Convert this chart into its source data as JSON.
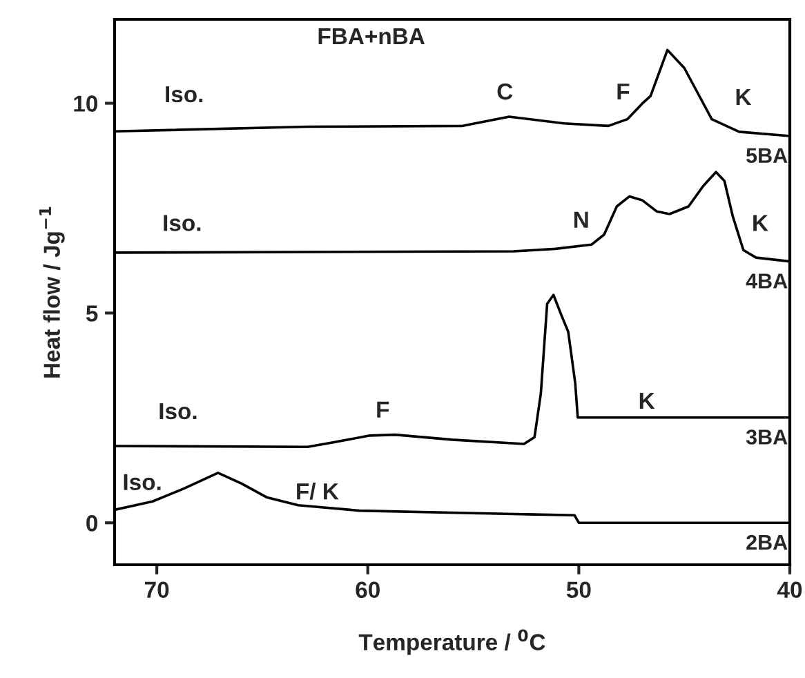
{
  "chart_data": {
    "type": "line",
    "title": "FBA+nBA",
    "xlabel": "Temperature / $^{0}$C",
    "ylabel": "Heat flow / Jg$^{−1}$",
    "xlim": [
      72,
      40
    ],
    "xticks": [
      70,
      60,
      50,
      40
    ],
    "ylim": [
      -1,
      12
    ],
    "yticks": [
      0,
      5,
      10
    ],
    "grid": false,
    "legend": false,
    "marker": "none",
    "line_style": "solid",
    "series": [
      {
        "name": "5BA",
        "color": "#000000",
        "x": [
          72,
          62.85,
          55.5,
          53.3,
          50.7,
          48.6,
          47.7,
          47.0,
          46.6,
          45.8,
          45.0,
          43.7,
          42.4,
          40
        ],
        "values": [
          9.33,
          9.44,
          9.46,
          9.68,
          9.52,
          9.46,
          9.62,
          9.99,
          10.17,
          11.27,
          10.84,
          9.62,
          9.32,
          9.22
        ]
      },
      {
        "name": "4BA",
        "color": "#000000",
        "x": [
          72,
          53.1,
          51.1,
          49.4,
          48.8,
          48.2,
          47.6,
          47.0,
          46.3,
          45.7,
          44.8,
          44.1,
          43.5,
          43.1,
          42.7,
          42.2,
          41.6,
          40
        ],
        "values": [
          6.44,
          6.47,
          6.53,
          6.63,
          6.87,
          7.54,
          7.78,
          7.69,
          7.42,
          7.36,
          7.54,
          8.03,
          8.36,
          8.15,
          7.3,
          6.5,
          6.32,
          6.23
        ]
      },
      {
        "name": "3BA",
        "color": "#000000",
        "x": [
          72,
          62.85,
          61.6,
          59.9,
          58.7,
          56.0,
          52.6,
          52.1,
          51.8,
          51.5,
          51.2,
          50.85,
          50.5,
          50.17,
          50.05,
          40
        ],
        "values": [
          1.83,
          1.81,
          1.92,
          2.08,
          2.1,
          1.98,
          1.88,
          2.04,
          3.08,
          5.22,
          5.43,
          4.98,
          4.55,
          3.33,
          2.51,
          2.51
        ]
      },
      {
        "name": "2BA",
        "color": "#000000",
        "x": [
          72,
          70.2,
          68.7,
          67.1,
          66.0,
          64.8,
          63.3,
          60.4,
          53.1,
          50.2,
          50.0,
          40
        ],
        "values": [
          0.31,
          0.51,
          0.82,
          1.19,
          0.94,
          0.61,
          0.42,
          0.29,
          0.21,
          0.18,
          0.0,
          0.0
        ]
      }
    ],
    "annotations": [
      "Iso.",
      "C",
      "F",
      "K",
      "Iso.",
      "N",
      "K",
      "Iso.",
      "F",
      "K",
      "Iso.",
      "F/ K"
    ]
  }
}
